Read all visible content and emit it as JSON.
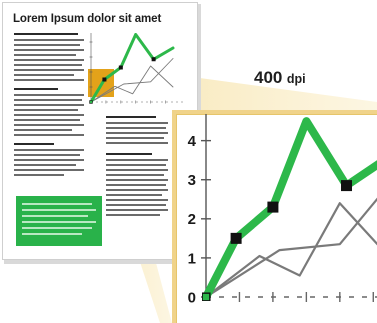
{
  "document": {
    "title": "Lorem Ipsum dolor sit amet"
  },
  "zoom": {
    "dpi_value": "400",
    "dpi_unit": "dpi"
  },
  "colors": {
    "accent_green": "#29b24a",
    "highlight_orange": "#e3a21a",
    "zoom_beam": "#f3dc9a"
  },
  "chart_data": {
    "type": "line",
    "yticks": [
      "0",
      "1",
      "2",
      "3",
      "4"
    ],
    "ylim": [
      0,
      4.4
    ],
    "series": [
      {
        "color": "#2db84a",
        "points": [
          [
            0.0,
            0.0
          ],
          [
            0.9,
            1.5
          ],
          [
            2.0,
            2.3
          ],
          [
            3.0,
            4.5
          ],
          [
            4.2,
            2.85
          ],
          [
            5.5,
            3.6
          ]
        ],
        "marked": [
          1,
          2,
          4
        ]
      },
      {
        "color": "#7a7a7a",
        "points": [
          [
            0.0,
            0.0
          ],
          [
            1.6,
            1.05
          ],
          [
            2.8,
            0.55
          ],
          [
            4.0,
            2.4
          ],
          [
            5.5,
            1.0
          ]
        ]
      },
      {
        "color": "#7a7a7a",
        "points": [
          [
            0.0,
            0.0
          ],
          [
            2.2,
            1.2
          ],
          [
            4.0,
            1.35
          ],
          [
            5.5,
            2.9
          ]
        ]
      }
    ]
  }
}
